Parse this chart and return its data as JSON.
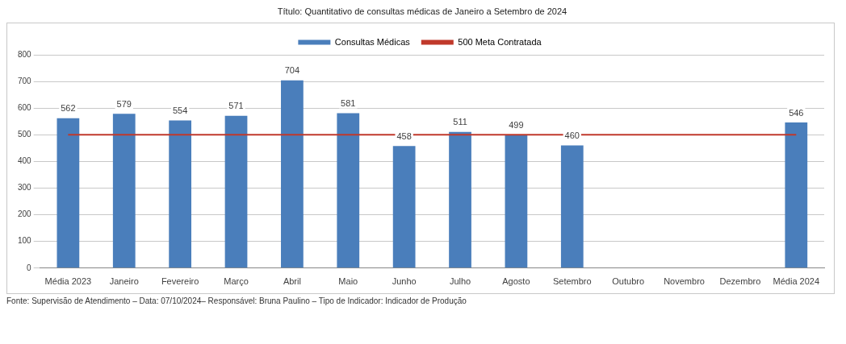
{
  "chart_data": {
    "type": "bar",
    "title": "Título: Quantitativo de consultas médicas de Janeiro a Setembro de 2024",
    "categories": [
      "Média 2023",
      "Janeiro",
      "Fevereiro",
      "Março",
      "Abril",
      "Maio",
      "Junho",
      "Julho",
      "Agosto",
      "Setembro",
      "Outubro",
      "Novembro",
      "Dezembro",
      "Média 2024"
    ],
    "series": [
      {
        "name": "Consultas Médicas",
        "color": "#4a7ebb",
        "values": [
          562,
          579,
          554,
          571,
          704,
          581,
          458,
          511,
          499,
          460,
          null,
          null,
          null,
          546
        ],
        "value_labels": [
          "562",
          "579",
          "554",
          "571",
          "704",
          "581",
          "458",
          "511",
          "499",
          "460",
          null,
          null,
          null,
          "546"
        ]
      },
      {
        "name": "500 Meta Contratada",
        "type": "line",
        "color": "#c0392b",
        "values": [
          500,
          500,
          500,
          500,
          500,
          500,
          500,
          500,
          500,
          500,
          500,
          500,
          500,
          500
        ]
      }
    ],
    "ylim": [
      0,
      800
    ],
    "yticks": [
      0,
      100,
      200,
      300,
      400,
      500,
      600,
      700,
      800
    ],
    "grid": "y",
    "legend": "top",
    "marker": "none",
    "annotations": [
      "Fonte: Supervisão de Atendimento – Data: 07/10/2024– Responsável: Bruna Paulino – Tipo de Indicador: Indicador de Produção"
    ]
  }
}
